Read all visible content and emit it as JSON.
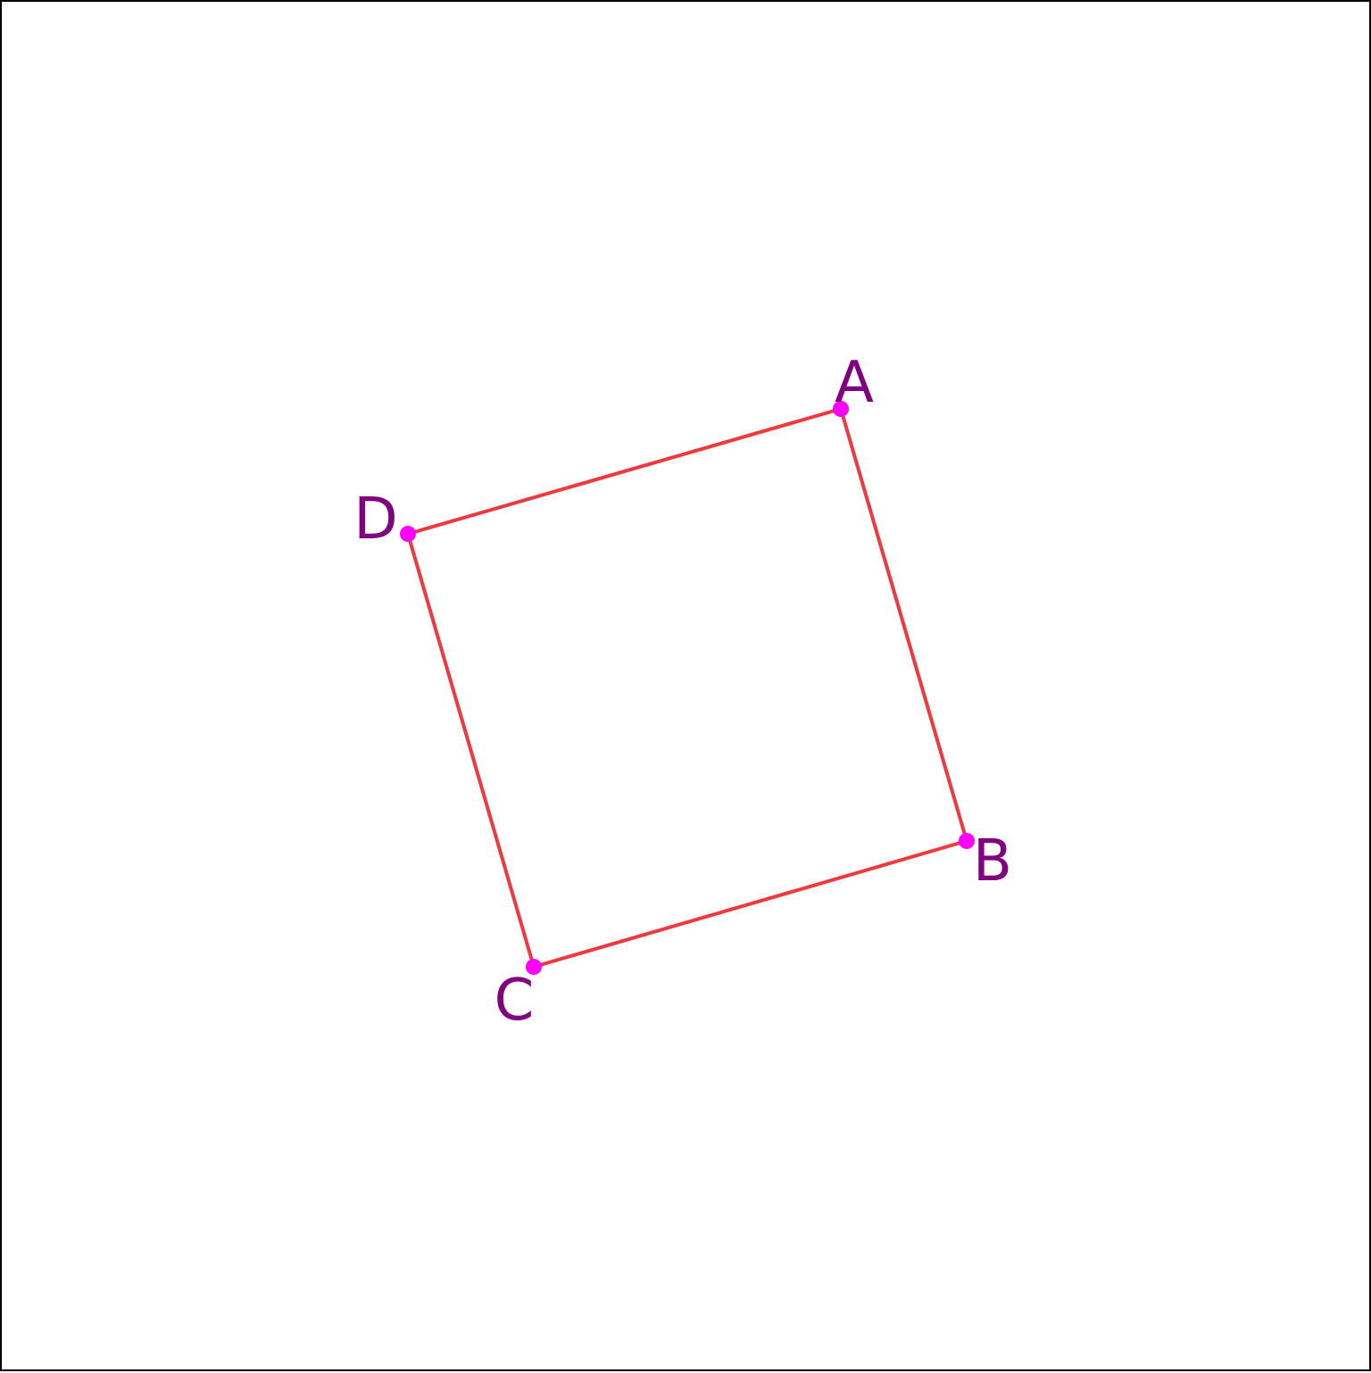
{
  "figure": {
    "vertices": [
      {
        "id": "A",
        "label": "A"
      },
      {
        "id": "B",
        "label": "B"
      },
      {
        "id": "C",
        "label": "C"
      },
      {
        "id": "D",
        "label": "D"
      }
    ],
    "edges": [
      [
        "A",
        "B"
      ],
      [
        "B",
        "C"
      ],
      [
        "C",
        "D"
      ],
      [
        "D",
        "A"
      ]
    ],
    "colors": {
      "edge": "#f0393f",
      "point": "#ff00ff",
      "label": "#800080",
      "border": "#000000",
      "background": "#ffffff"
    }
  }
}
